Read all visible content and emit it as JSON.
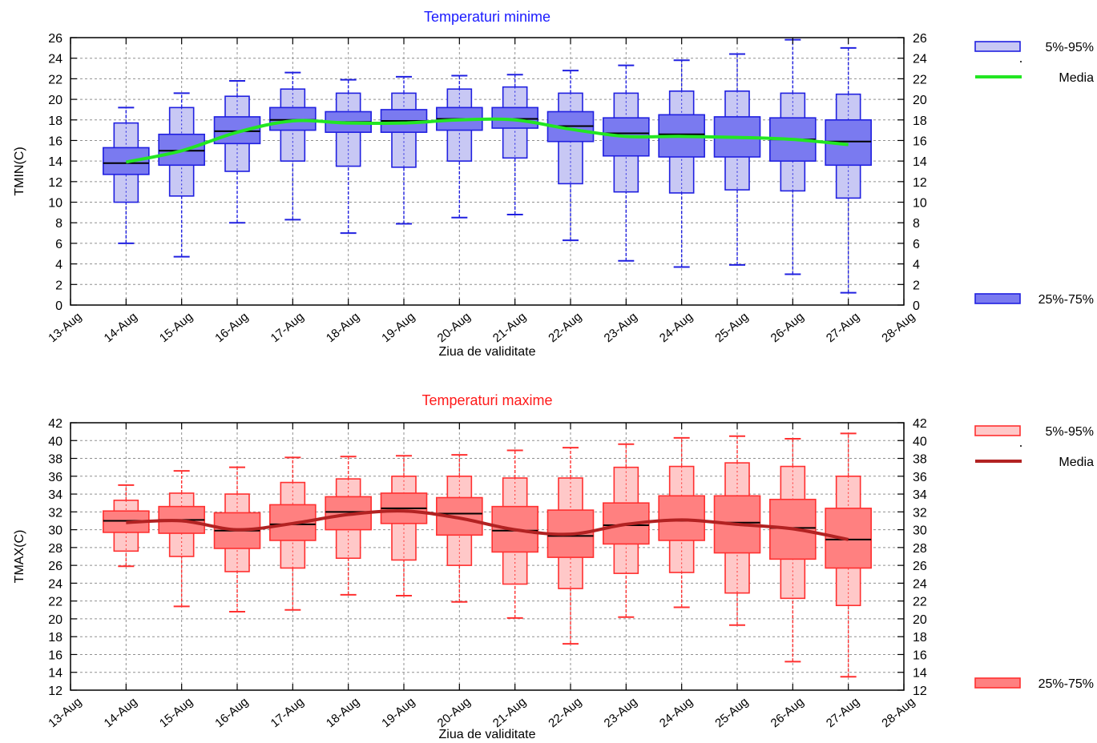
{
  "charts": [
    {
      "id": "tmin",
      "chart_data": {
        "type": "boxplot",
        "title": "Temperaturi minime",
        "title_color": "#1a1aff",
        "xlabel": "Ziua de validitate",
        "ylabel": "TMIN(C)",
        "ylim": [
          0,
          26
        ],
        "ytick_step": 2,
        "grid": true,
        "x_tick_labels": [
          "13-Aug",
          "14-Aug",
          "15-Aug",
          "16-Aug",
          "17-Aug",
          "18-Aug",
          "19-Aug",
          "20-Aug",
          "21-Aug",
          "22-Aug",
          "23-Aug",
          "24-Aug",
          "25-Aug",
          "26-Aug",
          "27-Aug",
          "28-Aug"
        ],
        "categories": [
          "14-Aug",
          "15-Aug",
          "16-Aug",
          "17-Aug",
          "18-Aug",
          "19-Aug",
          "20-Aug",
          "21-Aug",
          "22-Aug",
          "23-Aug",
          "24-Aug",
          "25-Aug",
          "26-Aug",
          "27-Aug"
        ],
        "series": [
          {
            "stat": "min",
            "values": [
              6.0,
              4.7,
              8.0,
              8.3,
              7.0,
              7.9,
              8.5,
              8.8,
              6.3,
              4.3,
              3.7,
              3.9,
              3.0,
              1.2
            ]
          },
          {
            "stat": "p5",
            "values": [
              10.0,
              10.6,
              13.0,
              14.0,
              13.5,
              13.4,
              14.0,
              14.3,
              11.8,
              11.0,
              10.9,
              11.2,
              11.1,
              10.4
            ]
          },
          {
            "stat": "p25",
            "values": [
              12.7,
              13.6,
              15.7,
              17.0,
              16.8,
              16.8,
              17.0,
              17.2,
              15.9,
              14.5,
              14.4,
              14.4,
              14.0,
              13.6
            ]
          },
          {
            "stat": "median",
            "values": [
              13.8,
              15.0,
              16.9,
              18.0,
              17.8,
              17.9,
              18.1,
              18.1,
              17.4,
              16.7,
              16.6,
              16.3,
              16.1,
              15.9
            ]
          },
          {
            "stat": "p75",
            "values": [
              15.3,
              16.6,
              18.3,
              19.2,
              18.8,
              19.0,
              19.2,
              19.2,
              18.8,
              18.2,
              18.5,
              18.3,
              18.2,
              18.0
            ]
          },
          {
            "stat": "p95",
            "values": [
              17.7,
              19.2,
              20.3,
              21.0,
              20.6,
              20.6,
              21.0,
              21.2,
              20.6,
              20.6,
              20.8,
              20.8,
              20.6,
              20.5
            ]
          },
          {
            "stat": "max",
            "values": [
              19.2,
              20.6,
              21.8,
              22.6,
              21.9,
              22.2,
              22.3,
              22.4,
              22.8,
              23.3,
              23.8,
              24.4,
              25.8,
              25.0
            ]
          },
          {
            "stat": "mean",
            "values": [
              13.9,
              15.0,
              16.8,
              17.9,
              17.7,
              17.7,
              18.0,
              18.0,
              17.1,
              16.4,
              16.4,
              16.3,
              16.1,
              15.6
            ]
          }
        ],
        "legend": [
          {
            "label": "5%-95%",
            "key": "p5_95"
          },
          {
            "label": "Media",
            "key": "mean"
          },
          {
            "label": "25%-75%",
            "key": "p25_75"
          }
        ],
        "colors": {
          "outline": "#2020e0",
          "box_outer_fill": "#c8c8f4",
          "box_inner_fill": "#7a7af0",
          "median": "#000000",
          "mean": "#22e622"
        }
      }
    },
    {
      "id": "tmax",
      "chart_data": {
        "type": "boxplot",
        "title": "Temperaturi maxime",
        "title_color": "#ff1a1a",
        "xlabel": "Ziua de validitate",
        "ylabel": "TMAX(C)",
        "ylim": [
          12,
          42
        ],
        "ytick_step": 2,
        "grid": true,
        "x_tick_labels": [
          "13-Aug",
          "14-Aug",
          "15-Aug",
          "16-Aug",
          "17-Aug",
          "18-Aug",
          "19-Aug",
          "20-Aug",
          "21-Aug",
          "22-Aug",
          "23-Aug",
          "24-Aug",
          "25-Aug",
          "26-Aug",
          "27-Aug",
          "28-Aug"
        ],
        "categories": [
          "14-Aug",
          "15-Aug",
          "16-Aug",
          "17-Aug",
          "18-Aug",
          "19-Aug",
          "20-Aug",
          "21-Aug",
          "22-Aug",
          "23-Aug",
          "24-Aug",
          "25-Aug",
          "26-Aug",
          "27-Aug"
        ],
        "series": [
          {
            "stat": "min",
            "values": [
              25.9,
              21.4,
              20.8,
              21.0,
              22.7,
              22.6,
              21.9,
              20.1,
              17.2,
              20.2,
              21.3,
              19.3,
              15.2,
              13.5
            ]
          },
          {
            "stat": "p5",
            "values": [
              27.6,
              27.0,
              25.3,
              25.7,
              26.8,
              26.6,
              26.0,
              23.9,
              23.4,
              25.1,
              25.2,
              22.9,
              22.3,
              21.5
            ]
          },
          {
            "stat": "p25",
            "values": [
              29.7,
              29.6,
              27.9,
              28.8,
              30.0,
              30.7,
              29.4,
              27.5,
              26.9,
              28.4,
              28.8,
              27.4,
              26.7,
              25.7
            ]
          },
          {
            "stat": "median",
            "values": [
              31.0,
              31.1,
              29.9,
              30.6,
              32.0,
              32.4,
              31.8,
              29.9,
              29.3,
              30.5,
              31.0,
              30.8,
              30.2,
              28.9
            ]
          },
          {
            "stat": "p75",
            "values": [
              32.1,
              32.6,
              31.9,
              32.8,
              33.7,
              34.1,
              33.6,
              32.6,
              32.2,
              33.0,
              33.8,
              33.8,
              33.4,
              32.4
            ]
          },
          {
            "stat": "p95",
            "values": [
              33.3,
              34.1,
              34.0,
              35.3,
              35.7,
              36.0,
              36.0,
              35.8,
              35.8,
              37.0,
              37.1,
              37.5,
              37.1,
              36.0
            ]
          },
          {
            "stat": "max",
            "values": [
              35.0,
              36.6,
              37.0,
              38.1,
              38.2,
              38.3,
              38.4,
              38.9,
              39.2,
              39.6,
              40.3,
              40.5,
              40.2,
              40.8
            ]
          },
          {
            "stat": "mean",
            "values": [
              30.8,
              31.0,
              30.0,
              30.7,
              31.7,
              32.1,
              31.3,
              30.0,
              29.5,
              30.6,
              31.1,
              30.6,
              30.1,
              28.9
            ]
          }
        ],
        "legend": [
          {
            "label": "5%-95%",
            "key": "p5_95"
          },
          {
            "label": "Media",
            "key": "mean"
          },
          {
            "label": "25%-75%",
            "key": "p25_75"
          }
        ],
        "colors": {
          "outline": "#ff3030",
          "box_outer_fill": "#ffc8c8",
          "box_inner_fill": "#ff8080",
          "median": "#000000",
          "mean": "#b22222"
        }
      }
    }
  ]
}
